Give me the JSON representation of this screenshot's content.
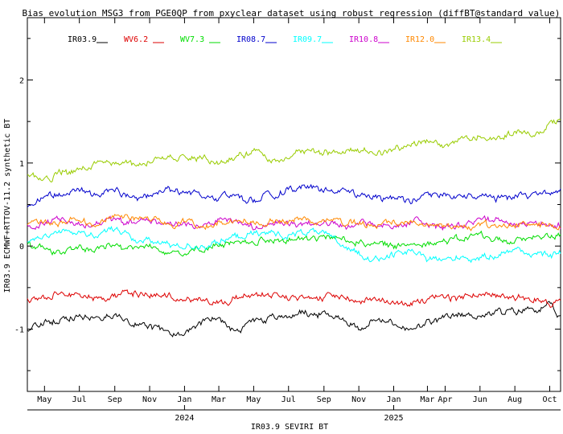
{
  "chart_data": {
    "type": "line",
    "title": "Bias evolution MSG3 from PGE0QP from pxyclear dataset using robust regression (diffBT@standard_value)",
    "xlabel": "IR03.9 SEVIRI BT",
    "ylabel": "IR03.9 ECMWF+RTTOV-11.2 synthetic BT",
    "x_range": [
      "2023-04-01",
      "2025-10-20"
    ],
    "ylim": [
      -1.75,
      2.75
    ],
    "y_ticks": [
      {
        "value": -1,
        "label": "-1"
      },
      {
        "value": 0,
        "label": "0"
      },
      {
        "value": 1,
        "label": "1"
      },
      {
        "value": 2,
        "label": "2"
      }
    ],
    "x_month_ticks": [
      {
        "date": "2023-05-01",
        "label": "May"
      },
      {
        "date": "2023-07-01",
        "label": "Jul"
      },
      {
        "date": "2023-09-01",
        "label": "Sep"
      },
      {
        "date": "2023-11-01",
        "label": "Nov"
      },
      {
        "date": "2024-01-01",
        "label": "Jan"
      },
      {
        "date": "2024-03-01",
        "label": "Mar"
      },
      {
        "date": "2024-05-01",
        "label": "May"
      },
      {
        "date": "2024-07-01",
        "label": "Jul"
      },
      {
        "date": "2024-09-01",
        "label": "Sep"
      },
      {
        "date": "2024-11-01",
        "label": "Nov"
      },
      {
        "date": "2025-01-01",
        "label": "Jan"
      },
      {
        "date": "2025-03-01",
        "label": "Mar"
      },
      {
        "date": "2025-04-01",
        "label": "Apr"
      },
      {
        "date": "2025-06-01",
        "label": "Jun"
      },
      {
        "date": "2025-08-01",
        "label": "Aug"
      },
      {
        "date": "2025-10-01",
        "label": "Oct"
      }
    ],
    "x_year_ticks": [
      {
        "date": "2024-01-01",
        "label": "2024"
      },
      {
        "date": "2025-01-01",
        "label": "2025"
      }
    ],
    "legend_placement": "top",
    "grid": false,
    "x": [
      "2023-04-01",
      "2023-05-01",
      "2023-06-01",
      "2023-07-01",
      "2023-08-01",
      "2023-09-01",
      "2023-10-01",
      "2023-11-01",
      "2023-12-01",
      "2024-01-01",
      "2024-02-01",
      "2024-03-01",
      "2024-04-01",
      "2024-05-01",
      "2024-06-01",
      "2024-07-01",
      "2024-08-01",
      "2024-09-01",
      "2024-10-01",
      "2024-11-01",
      "2024-12-01",
      "2025-01-01",
      "2025-02-01",
      "2025-03-01",
      "2025-04-01",
      "2025-05-01",
      "2025-06-01",
      "2025-07-01",
      "2025-08-01",
      "2025-09-01",
      "2025-10-01",
      "2025-10-20"
    ],
    "series": [
      {
        "name": "IR03.9",
        "color": "#000000",
        "values": [
          -1.0,
          -0.93,
          -0.88,
          -0.85,
          -0.88,
          -0.84,
          -0.92,
          -0.96,
          -1.02,
          -1.05,
          -0.9,
          -0.88,
          -1.05,
          -0.9,
          -0.86,
          -0.82,
          -0.8,
          -0.82,
          -0.86,
          -0.98,
          -0.9,
          -0.92,
          -1.0,
          -0.95,
          -0.9,
          -0.8,
          -0.82,
          -0.78,
          -0.8,
          -0.75,
          -0.72,
          -0.88
        ]
      },
      {
        "name": "WV6.2",
        "color": "#dd0000",
        "values": [
          -0.65,
          -0.6,
          -0.58,
          -0.6,
          -0.65,
          -0.6,
          -0.55,
          -0.6,
          -0.62,
          -0.68,
          -0.65,
          -0.7,
          -0.62,
          -0.6,
          -0.58,
          -0.62,
          -0.6,
          -0.62,
          -0.6,
          -0.65,
          -0.65,
          -0.7,
          -0.68,
          -0.62,
          -0.6,
          -0.58,
          -0.55,
          -0.58,
          -0.62,
          -0.65,
          -0.68,
          -0.7
        ]
      },
      {
        "name": "WV7.3",
        "color": "#00dd00",
        "values": [
          0.0,
          -0.05,
          -0.08,
          -0.02,
          0.0,
          0.02,
          -0.02,
          0.0,
          -0.05,
          -0.08,
          -0.05,
          0.0,
          0.02,
          0.05,
          0.08,
          0.1,
          0.08,
          0.1,
          0.08,
          0.05,
          0.02,
          0.0,
          0.02,
          0.05,
          0.08,
          0.1,
          0.12,
          0.08,
          0.05,
          0.1,
          0.12,
          0.15
        ]
      },
      {
        "name": "IR08.7",
        "color": "#0000cc",
        "values": [
          0.5,
          0.58,
          0.62,
          0.65,
          0.62,
          0.68,
          0.6,
          0.62,
          0.7,
          0.65,
          0.58,
          0.6,
          0.62,
          0.55,
          0.62,
          0.68,
          0.7,
          0.68,
          0.65,
          0.62,
          0.6,
          0.58,
          0.55,
          0.6,
          0.62,
          0.6,
          0.62,
          0.58,
          0.6,
          0.62,
          0.65,
          0.68
        ]
      },
      {
        "name": "IR09.7",
        "color": "#00ffff",
        "values": [
          0.05,
          0.15,
          0.2,
          0.15,
          0.1,
          0.22,
          0.1,
          0.05,
          0.02,
          0.0,
          0.02,
          0.05,
          0.1,
          0.12,
          0.15,
          0.12,
          0.18,
          0.15,
          0.0,
          -0.05,
          -0.15,
          -0.1,
          -0.05,
          -0.12,
          -0.15,
          -0.12,
          -0.15,
          -0.12,
          -0.05,
          -0.08,
          -0.1,
          -0.05
        ]
      },
      {
        "name": "IR10.8",
        "color": "#cc00cc",
        "values": [
          0.25,
          0.28,
          0.3,
          0.28,
          0.3,
          0.32,
          0.25,
          0.3,
          0.25,
          0.28,
          0.25,
          0.3,
          0.28,
          0.25,
          0.28,
          0.3,
          0.28,
          0.3,
          0.25,
          0.28,
          0.25,
          0.25,
          0.3,
          0.25,
          0.2,
          0.22,
          0.28,
          0.3,
          0.28,
          0.25,
          0.28,
          0.25
        ]
      },
      {
        "name": "IR12.0",
        "color": "#ff8800",
        "values": [
          0.28,
          0.3,
          0.32,
          0.3,
          0.28,
          0.35,
          0.3,
          0.32,
          0.28,
          0.3,
          0.25,
          0.28,
          0.3,
          0.28,
          0.3,
          0.32,
          0.3,
          0.3,
          0.28,
          0.28,
          0.25,
          0.28,
          0.3,
          0.28,
          0.25,
          0.22,
          0.25,
          0.25,
          0.28,
          0.25,
          0.25,
          0.25
        ]
      },
      {
        "name": "IR13.4",
        "color": "#99cc00",
        "values": [
          0.88,
          0.82,
          0.88,
          0.92,
          0.98,
          1.02,
          1.0,
          1.02,
          1.08,
          1.05,
          1.05,
          1.0,
          1.1,
          1.15,
          1.05,
          1.08,
          1.15,
          1.12,
          1.1,
          1.15,
          1.12,
          1.15,
          1.2,
          1.25,
          1.2,
          1.3,
          1.32,
          1.28,
          1.38,
          1.35,
          1.45,
          1.5
        ]
      }
    ]
  }
}
